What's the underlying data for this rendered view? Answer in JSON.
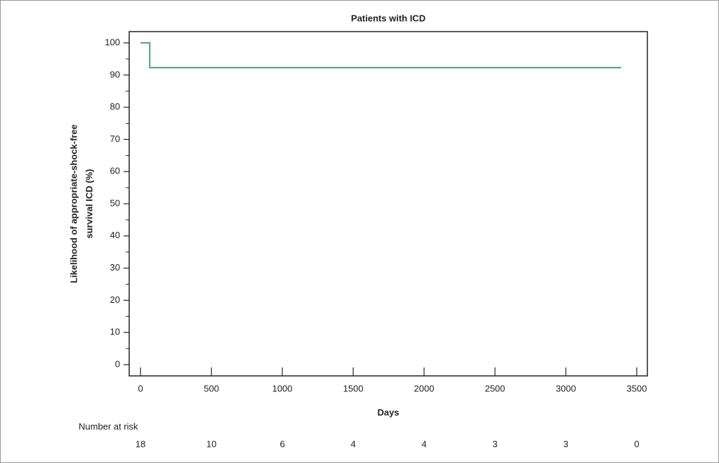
{
  "chart_data": {
    "type": "line",
    "title": "Patients with ICD",
    "xlabel": "Days",
    "ylabel": [
      "Likelihood of appropriate-shock-free",
      "survival ICD (%)"
    ],
    "x": [
      0,
      65,
      65,
      3390
    ],
    "values": [
      100,
      100,
      92.3,
      92.3
    ],
    "color": "#3a9a6a",
    "xlim": [
      -80,
      3575
    ],
    "xticks": [
      0,
      500,
      1000,
      1500,
      2000,
      2500,
      3000,
      3500
    ],
    "ylim": [
      -3.5,
      103.5
    ],
    "yticks": [
      0,
      10,
      20,
      30,
      40,
      50,
      60,
      70,
      80,
      90,
      100
    ],
    "yminor_ticks": [
      5,
      15,
      25,
      35,
      45,
      55,
      65,
      75,
      85,
      95
    ],
    "risk_table": {
      "title": "Number at risk",
      "values": [
        18,
        10,
        6,
        4,
        4,
        3,
        3,
        0
      ]
    }
  }
}
